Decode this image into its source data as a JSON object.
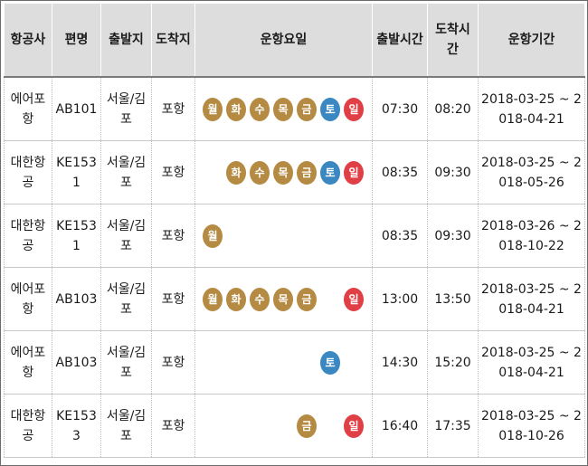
{
  "colors": {
    "weekday": "#b58a43",
    "saturday": "#3a87c2",
    "sunday": "#df3f45"
  },
  "headers": [
    "항공사",
    "편명",
    "출발지",
    "도착지",
    "운항요일",
    "출발시간",
    "도착시간",
    "운항기간"
  ],
  "day_labels": [
    "월",
    "화",
    "수",
    "목",
    "금",
    "토",
    "일"
  ],
  "rows": [
    {
      "airline": "에어포항",
      "flight": "AB101",
      "from": "서울/김포",
      "to": "포항",
      "days": [
        true,
        true,
        true,
        true,
        true,
        true,
        true
      ],
      "depart": "07:30",
      "arrive": "08:20",
      "period": "2018-03-25 ~ 2018-04-21"
    },
    {
      "airline": "대한항공",
      "flight": "KE1531",
      "from": "서울/김포",
      "to": "포항",
      "days": [
        false,
        true,
        true,
        true,
        true,
        true,
        true
      ],
      "depart": "08:35",
      "arrive": "09:30",
      "period": "2018-03-25 ~ 2018-05-26"
    },
    {
      "airline": "대한항공",
      "flight": "KE1531",
      "from": "서울/김포",
      "to": "포항",
      "days": [
        true,
        false,
        false,
        false,
        false,
        false,
        false
      ],
      "depart": "08:35",
      "arrive": "09:30",
      "period": "2018-03-26 ~ 2018-10-22"
    },
    {
      "airline": "에어포항",
      "flight": "AB103",
      "from": "서울/김포",
      "to": "포항",
      "days": [
        true,
        true,
        true,
        true,
        true,
        false,
        true
      ],
      "depart": "13:00",
      "arrive": "13:50",
      "period": "2018-03-25 ~ 2018-04-21"
    },
    {
      "airline": "에어포항",
      "flight": "AB103",
      "from": "서울/김포",
      "to": "포항",
      "days": [
        false,
        false,
        false,
        false,
        false,
        true,
        false
      ],
      "depart": "14:30",
      "arrive": "15:20",
      "period": "2018-03-25 ~ 2018-04-21"
    },
    {
      "airline": "대한항공",
      "flight": "KE1533",
      "from": "서울/김포",
      "to": "포항",
      "days": [
        false,
        false,
        false,
        false,
        true,
        false,
        true
      ],
      "depart": "16:40",
      "arrive": "17:35",
      "period": "2018-03-25 ~ 2018-10-26"
    }
  ]
}
